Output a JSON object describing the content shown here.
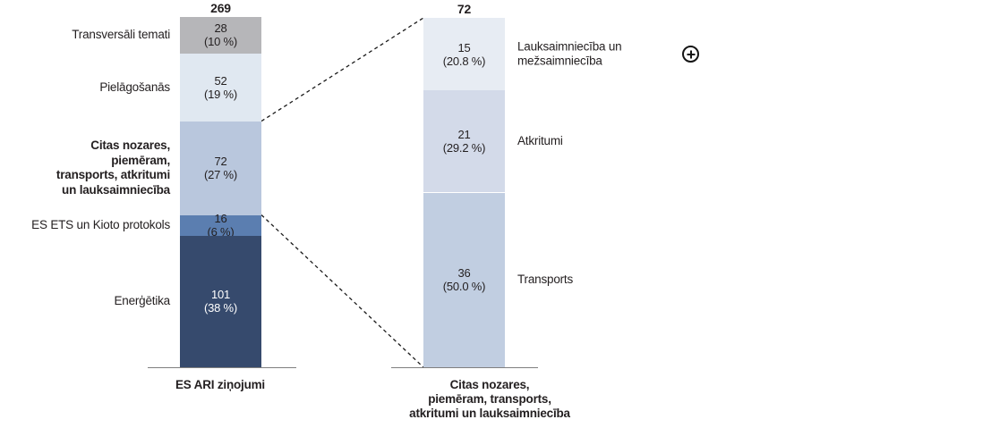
{
  "figure": {
    "background_color": "#ffffff",
    "text_color": "#231f20",
    "baseline_color": "#7f7f7f",
    "connector_color": "#1a1a1a"
  },
  "icons": {
    "plus_icon": "circled-plus-zoom-icon"
  },
  "chart_data": {
    "type": "bar",
    "subtype": "stacked-bar-with-breakout",
    "orientation": "vertical",
    "grid": false,
    "legend": false,
    "bars": [
      {
        "id": "es-ari-zinojumi",
        "total": 269,
        "total_label": "269",
        "axis_label_lines": [
          "ES ARI ziņojumi"
        ],
        "segments": [
          {
            "label_lines": [
              "Transversāli temati"
            ],
            "value": 28,
            "value_label": "28",
            "pct_label": "(10 %)",
            "color": "#b6b6b9"
          },
          {
            "label_lines": [
              "Pielāgošanās"
            ],
            "value": 52,
            "value_label": "52",
            "pct_label": "(19 %)",
            "color": "#e0e8f1"
          },
          {
            "label_lines": [
              "Citas nozares,",
              "piemēram,",
              "transports, atkritumi",
              "un lauksaimniecība"
            ],
            "label_bold": true,
            "value": 72,
            "value_label": "72",
            "pct_label": "(27 %)",
            "color": "#b9c7dd"
          },
          {
            "label_lines": [
              "ES ETS un Kioto protokols"
            ],
            "value": 16,
            "value_label": "16",
            "pct_label": "(6 %)",
            "color": "#5b7eb0"
          },
          {
            "label_lines": [
              "Enerģētika"
            ],
            "value": 101,
            "value_label": "101",
            "pct_label": "(38 %)",
            "color": "#364a6d",
            "text_color": "#ffffff"
          }
        ]
      },
      {
        "id": "citas-nozares-breakout",
        "total": 72,
        "total_label": "72",
        "axis_label_lines": [
          "Citas nozares,",
          "piemēram, transports,",
          "atkritumi un lauksaimniecība"
        ],
        "segments": [
          {
            "label_lines": [
              "Lauksaimniecība un",
              "mežsaimniecība"
            ],
            "value": 15,
            "value_label": "15",
            "pct_label": "(20.8 %)",
            "color": "#e7ecf3"
          },
          {
            "label_lines": [
              "Atkritumi"
            ],
            "value": 21,
            "value_label": "21",
            "pct_label": "(29.2 %)",
            "color": "#d3dae9"
          },
          {
            "label_lines": [
              "Transports"
            ],
            "value": 36,
            "value_label": "36",
            "pct_label": "(50.0 %)",
            "color": "#c1cee1"
          }
        ]
      }
    ],
    "breakout": {
      "from_bar": 0,
      "from_segment": 2,
      "to_bar": 1
    }
  }
}
